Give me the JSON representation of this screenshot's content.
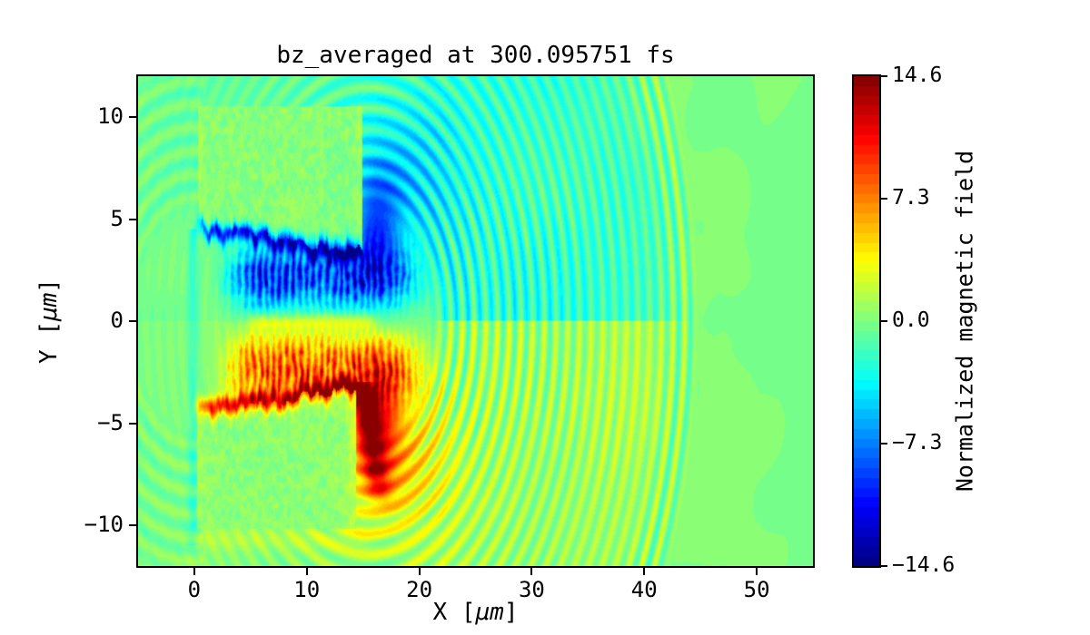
{
  "chart_data": {
    "type": "heatmap",
    "title": "bz_averaged at 300.095751 fs",
    "field_name": "bz_averaged",
    "time_label_fs": "300.095751",
    "xlabel": "X [μm]",
    "ylabel": "Y [μm]",
    "xlabel_parts": {
      "pre": "X [",
      "mu": "μm",
      "post": "]"
    },
    "ylabel_parts": {
      "pre": "Y [",
      "mu": "μm",
      "post": "]"
    },
    "xlim": [
      -5,
      55
    ],
    "ylim": [
      -12,
      12
    ],
    "x_ticks": {
      "values": [
        0,
        10,
        20,
        30,
        40,
        50
      ],
      "labels": [
        "0",
        "10",
        "20",
        "30",
        "40",
        "50"
      ]
    },
    "y_ticks": {
      "values": [
        10,
        5,
        0,
        -5,
        -10
      ],
      "labels": [
        "10",
        "5",
        "0",
        "−5",
        "−10"
      ]
    },
    "colormap": "jet",
    "vmin": -14.6,
    "vmax": 14.6,
    "levels": 50,
    "grid": false,
    "colorbar": {
      "label": "Normalized magnetic field",
      "ticks": {
        "values": [
          14.6,
          7.3,
          0.0,
          -7.3,
          -14.6
        ],
        "labels": [
          "14.6",
          "7.3",
          "0.0",
          "−7.3",
          "−14.6"
        ]
      },
      "position": "right"
    },
    "features": {
      "background_noise_amp": 0.8,
      "blocks": [
        {
          "x0": 0.35,
          "x1": 14.9,
          "y_outer": 10.55,
          "y_in0": 4.6,
          "y_in1": 3.25,
          "side": "top",
          "seed": 3,
          "speckle_base": 0.3,
          "speckle_amp": 1.4
        },
        {
          "x0": 0.2,
          "x1": 14.35,
          "y_outer": -10.2,
          "y_in0": -4.45,
          "y_in1": -3.2,
          "side": "bottom",
          "seed": 19,
          "speckle_base": 0.3,
          "speckle_amp": 1.4
        }
      ],
      "boundary_streaks": [
        {
          "x0": 0.1,
          "x1": 14.6,
          "y0": 4.55,
          "y1": 3.25,
          "amp": -11.0,
          "width": 0.4,
          "seed": 3
        },
        {
          "x0": 0.0,
          "x1": 14.1,
          "y0": -4.4,
          "y1": -3.15,
          "amp": 11.0,
          "width": 0.4,
          "seed": 19
        }
      ],
      "lobes": [
        {
          "cy": 2.15,
          "sy": 1.6,
          "amp": -12.8,
          "x_start": 1.0,
          "x_full": 6.0,
          "x_fade": 15.5,
          "x_end": 22.5
        },
        {
          "cy": -2.35,
          "sy": 1.7,
          "amp": 12.8,
          "x_start": 1.0,
          "x_full": 6.0,
          "x_fade": 16.0,
          "x_end": 23.0
        }
      ],
      "midline": {
        "y": -0.05,
        "width": 0.4,
        "amp": 3.0,
        "x0": 4.0,
        "x1": 17.0
      },
      "plumes": [
        {
          "cx": 16.2,
          "cy": 4.6,
          "sx": 2.2,
          "sy": 2.6,
          "amp": -7.5
        },
        {
          "cx": 18.0,
          "cy": 7.0,
          "sx": 4.5,
          "sy": 3.4,
          "amp": -3.2
        },
        {
          "cx": 16.2,
          "cy": -4.8,
          "sx": 2.1,
          "sy": 2.4,
          "amp": 8.5
        },
        {
          "cx": 17.5,
          "cy": -7.0,
          "sx": 4.2,
          "sy": 3.0,
          "amp": 4.0
        }
      ],
      "edge_streak": {
        "x_top": 14.7,
        "y_top": -3.0,
        "slope": 0.33,
        "y_end": -9.6,
        "amp": 7.0,
        "width": 1.15
      },
      "waves": {
        "cx": 15.5,
        "cy": 0.0,
        "wavelength": 1.04,
        "r_in": 6.0,
        "r_out": 29.6,
        "amp": 3.3,
        "decay": 0.05,
        "bump_r": 27.6,
        "bump_amp": 1.5,
        "bump_w": 1.6,
        "bias_top": -2.1,
        "bias_bottom": 1.0,
        "angle_k": 0.6,
        "angle_p": 0.5
      },
      "left_arcs": {
        "cx": 0.0,
        "cy": 0.0,
        "wavelength": 1.15,
        "r_in": 5.0,
        "r_out": 13.5,
        "amp": 0.95,
        "x_max": 0.8
      },
      "left_edge_strip": {
        "x": -0.1,
        "width": 0.45,
        "amp": -2.0,
        "y_min": -11.0,
        "y_max": 4.5
      },
      "under_block_band": {
        "y_center": -10.7,
        "width": 0.55,
        "amp": 1.3,
        "x0": 0.0,
        "x1": 16.0
      }
    }
  }
}
